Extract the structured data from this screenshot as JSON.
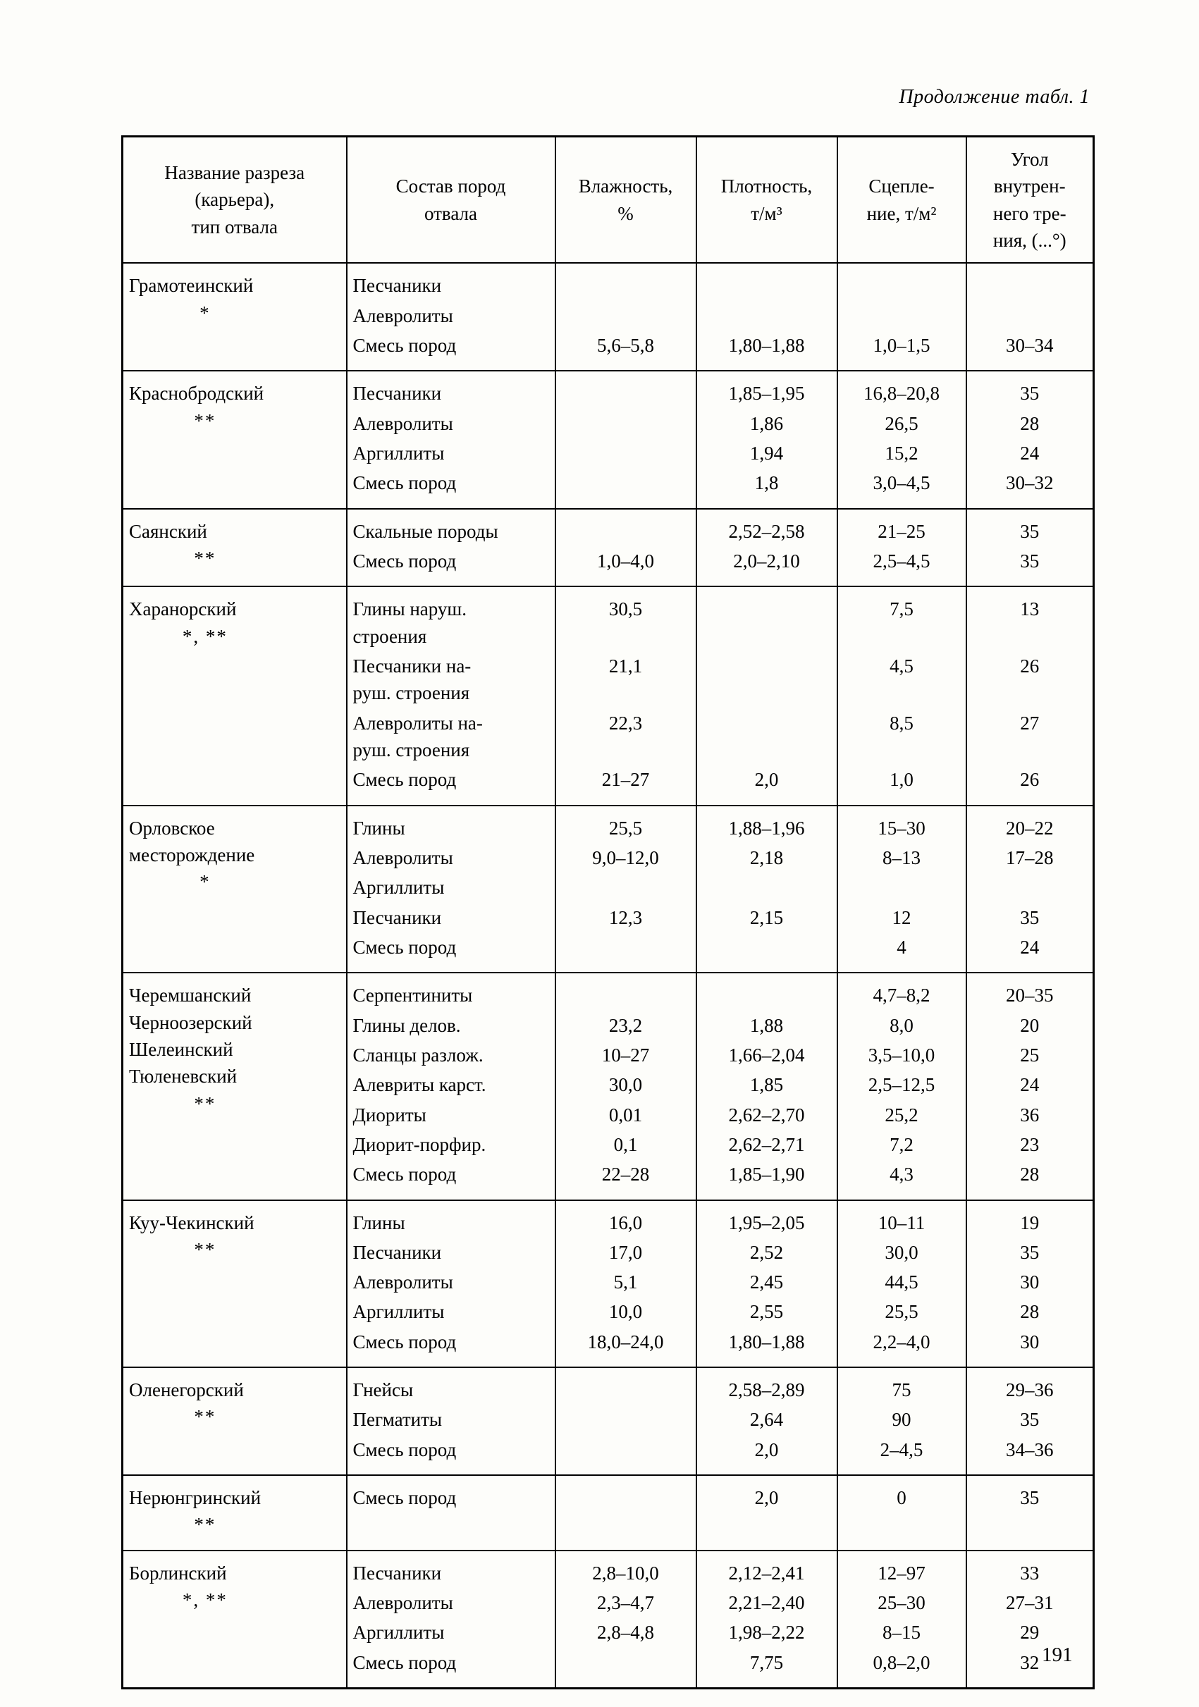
{
  "page": {
    "continuation_note": "Продолжение табл. 1",
    "page_number": "191"
  },
  "table": {
    "columns": [
      "Название разреза\n(карьера),\nтип отвала",
      "Состав пород\nотвала",
      "Влажность,\n%",
      "Плотность,\nт/м³",
      "Сцепле-\nние, т/м²",
      "Угол\nвнутрен-\nнего тре-\nния, (...°)"
    ],
    "groups": [
      {
        "name": "Грамотеинский",
        "marker": "*",
        "rows": [
          [
            "Песчаники",
            "",
            "",
            "",
            ""
          ],
          [
            "Алевролиты",
            "",
            "",
            "",
            ""
          ],
          [
            "Смесь пород",
            "5,6–5,8",
            "1,80–1,88",
            "1,0–1,5",
            "30–34"
          ]
        ]
      },
      {
        "name": "Краснобродский",
        "marker": "**",
        "rows": [
          [
            "Песчаники",
            "",
            "1,85–1,95",
            "16,8–20,8",
            "35"
          ],
          [
            "Алевролиты",
            "",
            "1,86",
            "26,5",
            "28"
          ],
          [
            "Аргиллиты",
            "",
            "1,94",
            "15,2",
            "24"
          ],
          [
            "Смесь пород",
            "",
            "1,8",
            "3,0–4,5",
            "30–32"
          ]
        ]
      },
      {
        "name": "Саянский",
        "marker": "**",
        "rows": [
          [
            "Скальные породы",
            "",
            "2,52–2,58",
            "21–25",
            "35"
          ],
          [
            "Смесь пород",
            "1,0–4,0",
            "2,0–2,10",
            "2,5–4,5",
            "35"
          ]
        ]
      },
      {
        "name": "Харанорский",
        "marker": "*, **",
        "rows": [
          [
            "Глины наруш.\nстроения",
            "30,5",
            "",
            "7,5",
            "13"
          ],
          [
            "Песчаники на-\nруш. строения",
            "21,1",
            "",
            "4,5",
            "26"
          ],
          [
            "Алевролиты на-\nруш. строения",
            "22,3",
            "",
            "8,5",
            "27"
          ],
          [
            "Смесь пород",
            "21–27",
            "2,0",
            "1,0",
            "26"
          ]
        ]
      },
      {
        "name": "Орловское\nместорождение",
        "marker": "*",
        "rows": [
          [
            "Глины",
            "25,5",
            "1,88–1,96",
            "15–30",
            "20–22"
          ],
          [
            "Алевролиты",
            "9,0–12,0",
            "2,18",
            "8–13",
            "17–28"
          ],
          [
            "Аргиллиты",
            "",
            "",
            "",
            ""
          ],
          [
            "Песчаники",
            "12,3",
            "2,15",
            "12",
            "35"
          ],
          [
            "Смесь пород",
            "",
            "",
            "4",
            "24"
          ]
        ]
      },
      {
        "name": "Черемшанский\nЧерноозерский\nШелеинский\nТюленевский",
        "marker": "**",
        "rows": [
          [
            "Серпентиниты",
            "",
            "",
            "4,7–8,2",
            "20–35"
          ],
          [
            "Глины делов.",
            "23,2",
            "1,88",
            "8,0",
            "20"
          ],
          [
            "Сланцы разлож.",
            "10–27",
            "1,66–2,04",
            "3,5–10,0",
            "25"
          ],
          [
            "Алевриты карст.",
            "30,0",
            "1,85",
            "2,5–12,5",
            "24"
          ],
          [
            "Диориты",
            "0,01",
            "2,62–2,70",
            "25,2",
            "36"
          ],
          [
            "Диорит-порфир.",
            "0,1",
            "2,62–2,71",
            "7,2",
            "23"
          ],
          [
            "Смесь пород",
            "22–28",
            "1,85–1,90",
            "4,3",
            "28"
          ]
        ]
      },
      {
        "name": "Куу-Чекинский",
        "marker": "**",
        "rows": [
          [
            "Глины",
            "16,0",
            "1,95–2,05",
            "10–11",
            "19"
          ],
          [
            "Песчаники",
            "17,0",
            "2,52",
            "30,0",
            "35"
          ],
          [
            "Алевролиты",
            "5,1",
            "2,45",
            "44,5",
            "30"
          ],
          [
            "Аргиллиты",
            "10,0",
            "2,55",
            "25,5",
            "28"
          ],
          [
            "Смесь пород",
            "18,0–24,0",
            "1,80–1,88",
            "2,2–4,0",
            "30"
          ]
        ]
      },
      {
        "name": "Оленегорский",
        "marker": "**",
        "rows": [
          [
            "Гнейсы",
            "",
            "2,58–2,89",
            "75",
            "29–36"
          ],
          [
            "Пегматиты",
            "",
            "2,64",
            "90",
            "35"
          ],
          [
            "Смесь пород",
            "",
            "2,0",
            "2–4,5",
            "34–36"
          ]
        ]
      },
      {
        "name": "Нерюнгринский",
        "marker": "**",
        "rows": [
          [
            "Смесь пород",
            "",
            "2,0",
            "0",
            "35"
          ]
        ]
      },
      {
        "name": "Борлинский",
        "marker": "*, **",
        "rows": [
          [
            "Песчаники",
            "2,8–10,0",
            "2,12–2,41",
            "12–97",
            "33"
          ],
          [
            "Алевролиты",
            "2,3–4,7",
            "2,21–2,40",
            "25–30",
            "27–31"
          ],
          [
            "Аргиллиты",
            "2,8–4,8",
            "1,98–2,22",
            "8–15",
            "29"
          ],
          [
            "Смесь пород",
            "",
            "7,75",
            "0,8–2,0",
            "32"
          ]
        ]
      }
    ]
  }
}
